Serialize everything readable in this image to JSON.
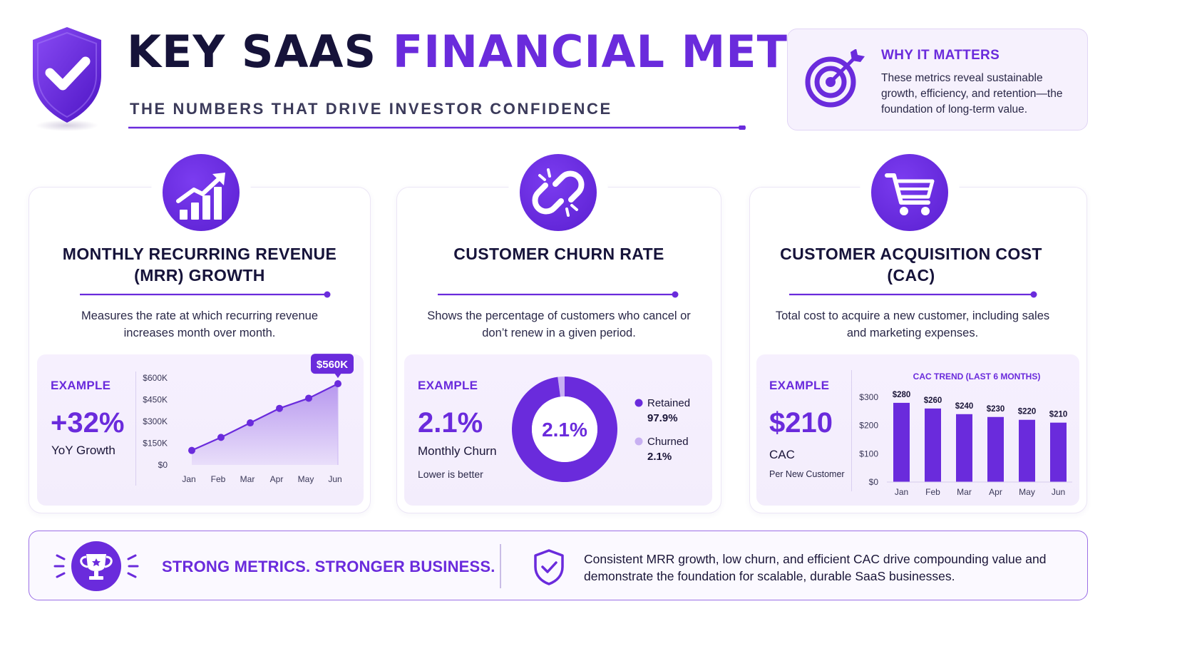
{
  "header": {
    "title_part1": "KEY SAAS",
    "title_part2": "FINANCIAL METRICS",
    "subtitle": "THE NUMBERS THAT DRIVE INVESTOR CONFIDENCE"
  },
  "why": {
    "heading": "WHY IT MATTERS",
    "text": "These metrics reveal sustainable growth, efficiency, and retention—the foundation of long-term value."
  },
  "colors": {
    "primary": "#6a2bdc",
    "light": "#c8b0f2",
    "dark": "#16133a"
  },
  "cards": [
    {
      "icon": "bar-chart-growth-icon",
      "title": "MONTHLY RECURRING REVENUE (MRR) GROWTH",
      "description": "Measures the rate at which recurring revenue increases month over month.",
      "example_label": "EXAMPLE",
      "value": "+32%",
      "value_caption": "YoY Growth"
    },
    {
      "icon": "broken-link-icon",
      "title": "CUSTOMER CHURN RATE",
      "description": "Shows the percentage of customers who cancel or don’t renew in a given period.",
      "example_label": "EXAMPLE",
      "value": "2.1%",
      "value_caption": "Monthly Churn",
      "note": "Lower is better"
    },
    {
      "icon": "shopping-cart-icon",
      "title": "CUSTOMER ACQUISITION COST (CAC)",
      "description": "Total cost to acquire a new customer, including sales and marketing expenses.",
      "example_label": "EXAMPLE",
      "value": "$210",
      "value_caption": "CAC",
      "note": "Per New Customer"
    }
  ],
  "chart_data": [
    {
      "type": "area",
      "categories": [
        "Jan",
        "Feb",
        "Mar",
        "Apr",
        "May",
        "Jun"
      ],
      "values": [
        100,
        190,
        290,
        390,
        460,
        560
      ],
      "unit": "$K",
      "yticks": [
        "$0",
        "$150K",
        "$300K",
        "$450K",
        "$600K"
      ],
      "ylim": [
        0,
        600
      ],
      "callout": "$560K",
      "grid": false
    },
    {
      "type": "pie",
      "donut": true,
      "center_label": "2.1%",
      "slices": [
        {
          "name": "Retained",
          "label": "97.9%",
          "value": 97.9,
          "color": "#6a2bdc"
        },
        {
          "name": "Churned",
          "label": "2.1%",
          "value": 2.1,
          "color": "#c8b0f2"
        }
      ],
      "legend": "right"
    },
    {
      "type": "bar",
      "title": "CAC TREND (LAST 6 MONTHS)",
      "categories": [
        "Jan",
        "Feb",
        "Mar",
        "Apr",
        "May",
        "Jun"
      ],
      "values": [
        280,
        260,
        240,
        230,
        220,
        210
      ],
      "value_labels": [
        "$280",
        "$260",
        "$240",
        "$230",
        "$220",
        "$210"
      ],
      "yticks": [
        "$0",
        "$100",
        "$200",
        "$300"
      ],
      "ylim": [
        0,
        300
      ],
      "grid": false
    }
  ],
  "footer": {
    "slogan": "STRONG METRICS. STRONGER BUSINESS.",
    "text": "Consistent MRR growth, low churn, and efficient CAC drive compounding value and demonstrate the foundation for  scalable, durable SaaS businesses."
  }
}
